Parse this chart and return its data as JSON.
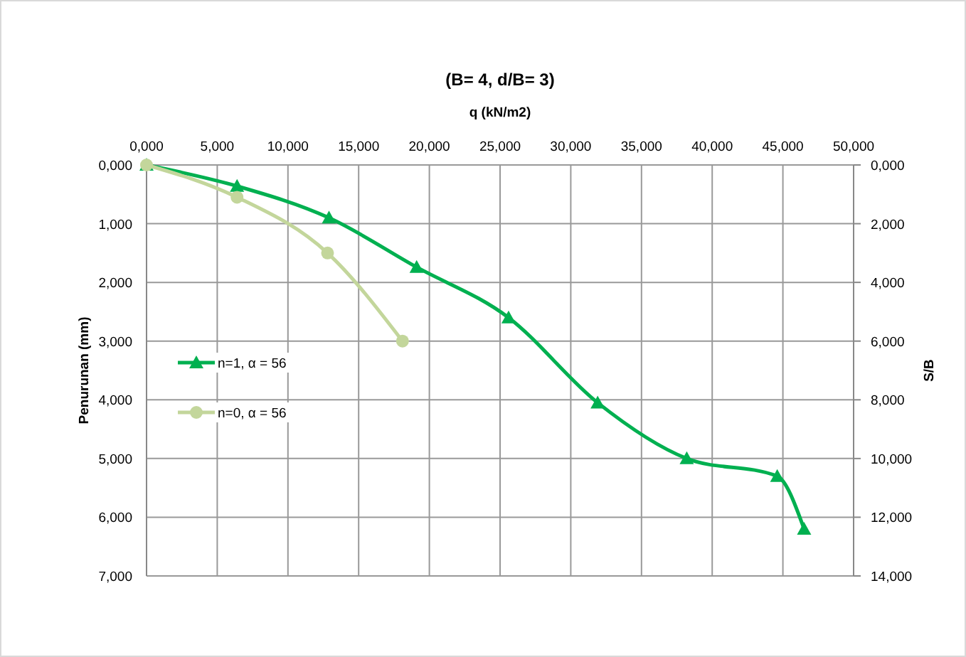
{
  "chart_data": {
    "type": "line",
    "title": "(B= 4, d/B= 3)",
    "xlabel": "q (kN/m2)",
    "ylabel": "Penurunan (mm)",
    "y2label": "S/B",
    "xlim": [
      0,
      50
    ],
    "xticks": [
      {
        "value": 0,
        "label": "0,000"
      },
      {
        "value": 5,
        "label": "5,000"
      },
      {
        "value": 10,
        "label": "10,000"
      },
      {
        "value": 15,
        "label": "15,000"
      },
      {
        "value": 20,
        "label": "20,000"
      },
      {
        "value": 25,
        "label": "25,000"
      },
      {
        "value": 30,
        "label": "30,000"
      },
      {
        "value": 35,
        "label": "35,000"
      },
      {
        "value": 40,
        "label": "40,000"
      },
      {
        "value": 45,
        "label": "45,000"
      },
      {
        "value": 50,
        "label": "50,000"
      }
    ],
    "ylim": [
      7,
      0
    ],
    "yticks": [
      {
        "value": 0,
        "label": "0,000"
      },
      {
        "value": 1,
        "label": "1,000"
      },
      {
        "value": 2,
        "label": "2,000"
      },
      {
        "value": 3,
        "label": "3,000"
      },
      {
        "value": 4,
        "label": "4,000"
      },
      {
        "value": 5,
        "label": "5,000"
      },
      {
        "value": 6,
        "label": "6,000"
      },
      {
        "value": 7,
        "label": "7,000"
      }
    ],
    "y2lim": [
      14,
      0
    ],
    "y2ticks": [
      {
        "value": 0,
        "label": "0,000"
      },
      {
        "value": 2,
        "label": "2,000"
      },
      {
        "value": 4,
        "label": "4,000"
      },
      {
        "value": 6,
        "label": "6,000"
      },
      {
        "value": 8,
        "label": "8,000"
      },
      {
        "value": 10,
        "label": "10,000"
      },
      {
        "value": 12,
        "label": "12,000"
      },
      {
        "value": 14,
        "label": "14,000"
      }
    ],
    "grid": true,
    "legend": "left",
    "series": [
      {
        "name": "n=1, α = 56",
        "color": "#00b050",
        "marker": "triangle",
        "x": [
          0,
          6.4,
          12.9,
          19.1,
          25.6,
          31.9,
          38.2,
          44.6,
          46.5
        ],
        "values": [
          0,
          0.36,
          0.9,
          1.74,
          2.6,
          4.05,
          5.0,
          5.3,
          6.2
        ]
      },
      {
        "name": "n=0, α = 56",
        "color": "#c3d69b",
        "marker": "circle",
        "x": [
          0,
          6.4,
          12.8,
          18.1
        ],
        "values": [
          0,
          0.55,
          1.5,
          3.0
        ]
      }
    ]
  }
}
